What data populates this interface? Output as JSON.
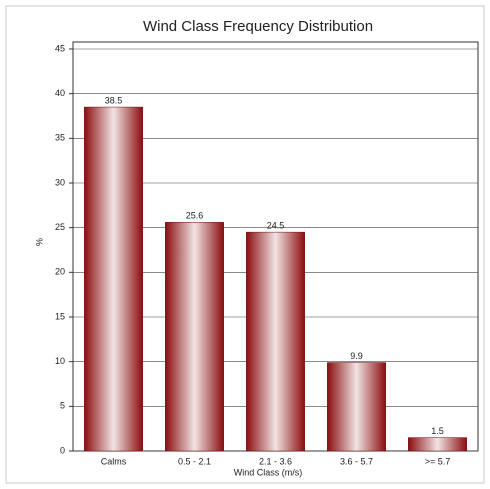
{
  "chart_data": {
    "type": "bar",
    "title": "Wind Class Frequency Distribution",
    "x_label": "Wind Class (m/s)",
    "y_label": "%",
    "categories": [
      "Calms",
      "0.5 - 2.1",
      "2.1 - 3.6",
      "3.6 - 5.7",
      ">= 5.7"
    ],
    "values": [
      38.5,
      25.6,
      24.5,
      9.9,
      1.5
    ],
    "color": "#8b0d10",
    "ylim": [
      0,
      45
    ],
    "yticks": [
      0,
      5,
      10,
      15,
      20,
      25,
      30,
      35,
      40,
      45
    ],
    "grid": true
  }
}
